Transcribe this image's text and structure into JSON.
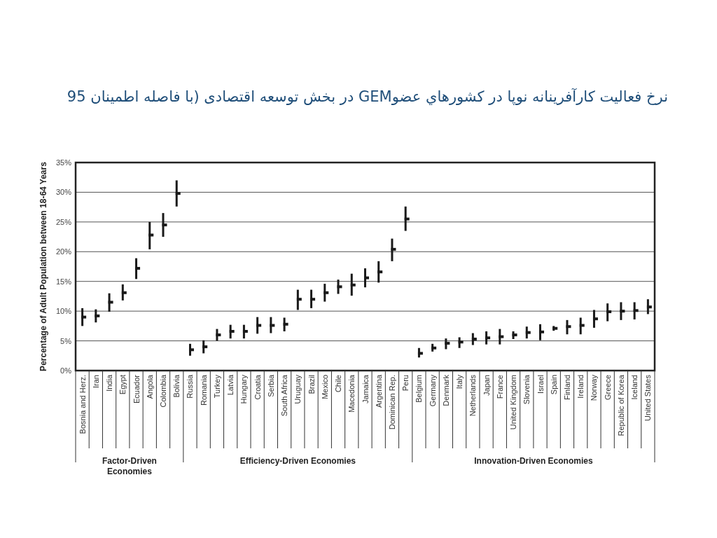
{
  "chart_data": {
    "type": "scatter",
    "title": "نرخ فعاليت كارآفرينانه نوپا در كشورهاي عضوGEM در بخش توسعه اقتصادی (با فاصله اطمینان 95",
    "ylabel": "Percentage of Adult Population between 18-64 Years",
    "categories": [
      "Bosnia and Herz.",
      "Iran",
      "India",
      "Egypt",
      "Ecuador",
      "Angola",
      "Colombia",
      "Bolivia",
      "Russia",
      "Romania",
      "Turkey",
      "Latvia",
      "Hungary",
      "Croatia",
      "Serbia",
      "South Africa",
      "Uruguay",
      "Brazil",
      "Mexico",
      "Chile",
      "Macedonia",
      "Jamaica",
      "Argentina",
      "Dominican Rep.",
      "Peru",
      "Belgium",
      "Germany",
      "Denmark",
      "Italy",
      "Netherlands",
      "Japan",
      "France",
      "United Kingdom",
      "Slovenia",
      "Israel",
      "Spain",
      "Finland",
      "Ireland",
      "Norway",
      "Greece",
      "Republic of Korea",
      "Iceland",
      "United States"
    ],
    "values": [
      9.0,
      9.2,
      11.5,
      13.1,
      17.2,
      22.8,
      24.5,
      29.8,
      3.5,
      4.0,
      6.0,
      6.6,
      6.6,
      7.6,
      7.6,
      7.8,
      12.0,
      12.0,
      13.1,
      14.1,
      14.4,
      15.6,
      16.6,
      20.4,
      25.5,
      2.9,
      3.8,
      4.6,
      4.8,
      5.3,
      5.5,
      5.7,
      6.0,
      6.4,
      6.5,
      7.1,
      7.4,
      7.6,
      8.7,
      9.9,
      10.0,
      10.1,
      10.7
    ],
    "errors": [
      [
        7.5,
        10.5
      ],
      [
        8.1,
        10.3
      ],
      [
        9.9,
        13.0
      ],
      [
        11.8,
        14.5
      ],
      [
        15.4,
        18.9
      ],
      [
        20.4,
        25.0
      ],
      [
        22.5,
        26.5
      ],
      [
        27.6,
        32.0
      ],
      [
        2.5,
        4.5
      ],
      [
        2.9,
        5.1
      ],
      [
        5.0,
        7.0
      ],
      [
        5.4,
        7.7
      ],
      [
        5.4,
        7.7
      ],
      [
        6.2,
        9.0
      ],
      [
        6.3,
        9.0
      ],
      [
        6.6,
        8.9
      ],
      [
        10.2,
        13.6
      ],
      [
        10.5,
        13.6
      ],
      [
        11.6,
        14.6
      ],
      [
        12.9,
        15.3
      ],
      [
        12.6,
        16.3
      ],
      [
        14.0,
        17.2
      ],
      [
        14.8,
        18.4
      ],
      [
        18.4,
        22.2
      ],
      [
        23.5,
        27.6
      ],
      [
        2.2,
        3.8
      ],
      [
        3.2,
        4.5
      ],
      [
        3.6,
        5.4
      ],
      [
        3.8,
        5.6
      ],
      [
        4.3,
        6.3
      ],
      [
        4.4,
        6.6
      ],
      [
        4.4,
        7.0
      ],
      [
        5.3,
        6.6
      ],
      [
        5.4,
        7.4
      ],
      [
        5.1,
        7.8
      ],
      [
        6.7,
        7.5
      ],
      [
        6.1,
        8.5
      ],
      [
        6.1,
        8.9
      ],
      [
        7.2,
        10.2
      ],
      [
        8.3,
        11.3
      ],
      [
        8.5,
        11.5
      ],
      [
        8.6,
        11.5
      ],
      [
        9.5,
        12.0
      ]
    ],
    "color": "#1a1a1a",
    "marker": "square",
    "grid": "y",
    "ylim": [
      0,
      35
    ],
    "yticks": [
      {
        "value": 0,
        "label": "0%"
      },
      {
        "value": 5,
        "label": "5%"
      },
      {
        "value": 10,
        "label": "10%"
      },
      {
        "value": 15,
        "label": "15%"
      },
      {
        "value": 20,
        "label": "20%"
      },
      {
        "value": 25,
        "label": "25%"
      },
      {
        "value": 30,
        "label": "30%"
      },
      {
        "value": 35,
        "label": "35%"
      }
    ],
    "annotations": [
      "Factor-Driven Economies",
      "Efficiency-Driven Economies",
      "Innovation-Driven Economies"
    ]
  }
}
